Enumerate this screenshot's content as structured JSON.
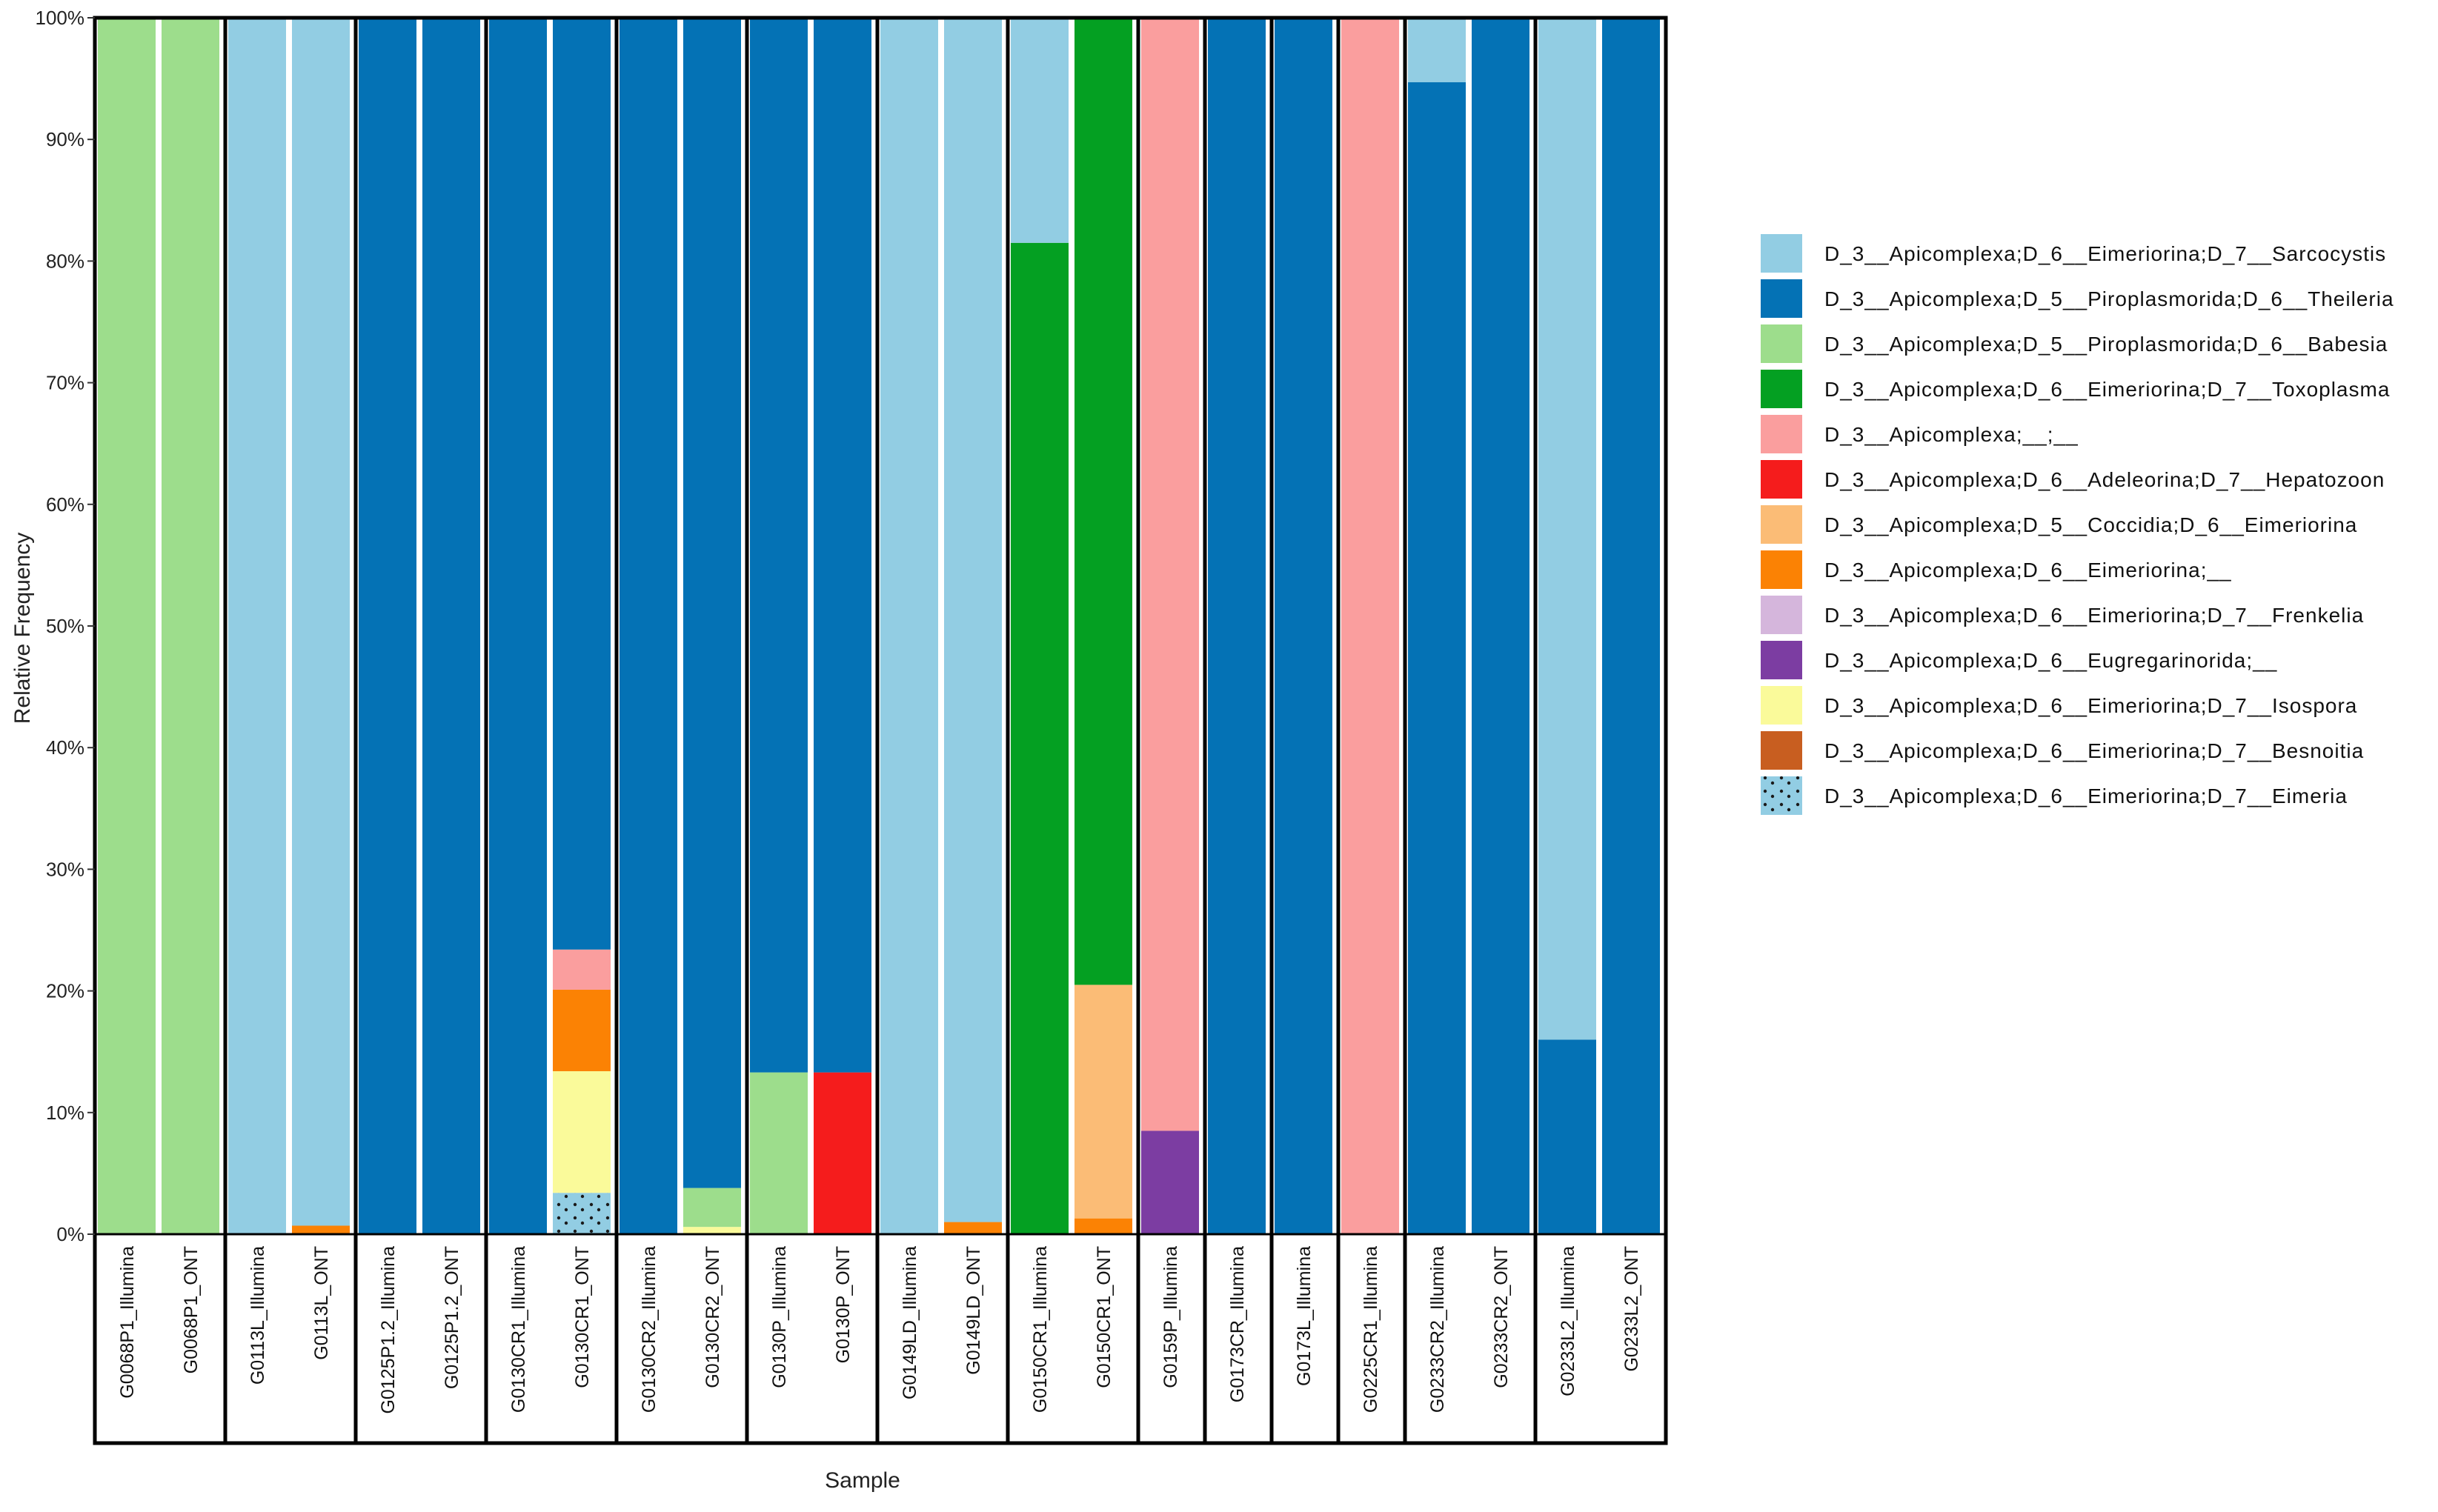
{
  "chart_data": {
    "type": "bar",
    "stacked": true,
    "orientation": "vertical",
    "xlabel": "Sample",
    "ylabel": "Relative Frequency",
    "ylim": [
      0,
      100
    ],
    "yticks": [
      0,
      10,
      20,
      30,
      40,
      50,
      60,
      70,
      80,
      90,
      100
    ],
    "yticks_format": "percent",
    "legend_position": "right",
    "taxa": [
      {
        "name": "D_3__Apicomplexa;D_6__Eimeriorina;D_7__Sarcocystis",
        "color": "#92CDE3"
      },
      {
        "name": "D_3__Apicomplexa;D_5__Piroplasmorida;D_6__Theileria",
        "color": "#0472B5"
      },
      {
        "name": "D_3__Apicomplexa;D_5__Piroplasmorida;D_6__Babesia",
        "color": "#9DDD8C"
      },
      {
        "name": "D_3__Apicomplexa;D_6__Eimeriorina;D_7__Toxoplasma",
        "color": "#04A022"
      },
      {
        "name": "D_3__Apicomplexa;__;__",
        "color": "#FA9E9E"
      },
      {
        "name": "D_3__Apicomplexa;D_6__Adeleorina;D_7__Hepatozoon",
        "color": "#F51C1C"
      },
      {
        "name": "D_3__Apicomplexa;D_5__Coccidia;D_6__Eimeriorina",
        "color": "#FBBC76"
      },
      {
        "name": "D_3__Apicomplexa;D_6__Eimeriorina;__",
        "color": "#FB8204"
      },
      {
        "name": "D_3__Apicomplexa;D_6__Eimeriorina;D_7__Frenkelia",
        "color": "#D5B6DC"
      },
      {
        "name": "D_3__Apicomplexa;D_6__Eugregarinorida;__",
        "color": "#7C3DA2"
      },
      {
        "name": "D_3__Apicomplexa;D_6__Eimeriorina;D_7__Isospora",
        "color": "#FAFA9A"
      },
      {
        "name": "D_3__Apicomplexa;D_6__Eimeriorina;D_7__Besnoitia",
        "color": "#C85E20"
      },
      {
        "name": "D_3__Apicomplexa;D_6__Eimeriorina;D_7__Eimeria",
        "color": "#92CDE3",
        "pattern": "dots"
      }
    ],
    "groups": [
      {
        "samples": [
          {
            "name": "G0068P1_Illumina",
            "stack": [
              {
                "taxon": 2,
                "value": 100
              }
            ]
          },
          {
            "name": "G0068P1_ONT",
            "stack": [
              {
                "taxon": 2,
                "value": 100
              }
            ]
          }
        ]
      },
      {
        "samples": [
          {
            "name": "G0113L_Illumina",
            "stack": [
              {
                "taxon": 0,
                "value": 100
              }
            ]
          },
          {
            "name": "G0113L_ONT",
            "stack": [
              {
                "taxon": 7,
                "value": 0.7
              },
              {
                "taxon": 0,
                "value": 99.3
              }
            ]
          }
        ]
      },
      {
        "samples": [
          {
            "name": "G0125P1.2_Illumina",
            "stack": [
              {
                "taxon": 1,
                "value": 100
              }
            ]
          },
          {
            "name": "G0125P1.2_ONT",
            "stack": [
              {
                "taxon": 1,
                "value": 100
              }
            ]
          }
        ]
      },
      {
        "samples": [
          {
            "name": "G0130CR1_Illumina",
            "stack": [
              {
                "taxon": 1,
                "value": 100
              }
            ]
          },
          {
            "name": "G0130CR1_ONT",
            "stack": [
              {
                "taxon": 12,
                "value": 3.4
              },
              {
                "taxon": 10,
                "value": 10
              },
              {
                "taxon": 7,
                "value": 6.7
              },
              {
                "taxon": 4,
                "value": 3.3
              },
              {
                "taxon": 1,
                "value": 76.6
              }
            ]
          }
        ]
      },
      {
        "samples": [
          {
            "name": "G0130CR2_Illumina",
            "stack": [
              {
                "taxon": 1,
                "value": 100
              }
            ]
          },
          {
            "name": "G0130CR2_ONT",
            "stack": [
              {
                "taxon": 10,
                "value": 0.6
              },
              {
                "taxon": 2,
                "value": 3.2
              },
              {
                "taxon": 1,
                "value": 96.2
              }
            ]
          }
        ]
      },
      {
        "samples": [
          {
            "name": "G0130P_Illumina",
            "stack": [
              {
                "taxon": 2,
                "value": 13.3
              },
              {
                "taxon": 1,
                "value": 86.7
              }
            ]
          },
          {
            "name": "G0130P_ONT",
            "stack": [
              {
                "taxon": 5,
                "value": 13.3
              },
              {
                "taxon": 1,
                "value": 86.7
              }
            ]
          }
        ]
      },
      {
        "samples": [
          {
            "name": "G0149LD_Illumina",
            "stack": [
              {
                "taxon": 0,
                "value": 100
              }
            ]
          },
          {
            "name": "G0149LD_ONT",
            "stack": [
              {
                "taxon": 7,
                "value": 1
              },
              {
                "taxon": 0,
                "value": 99
              }
            ]
          }
        ]
      },
      {
        "samples": [
          {
            "name": "G0150CR1_Illumina",
            "stack": [
              {
                "taxon": 3,
                "value": 81.5
              },
              {
                "taxon": 0,
                "value": 18.5
              }
            ]
          },
          {
            "name": "G0150CR1_ONT",
            "stack": [
              {
                "taxon": 7,
                "value": 1.3
              },
              {
                "taxon": 6,
                "value": 19.2
              },
              {
                "taxon": 3,
                "value": 79.5
              }
            ]
          }
        ]
      },
      {
        "samples": [
          {
            "name": "G0159P_Illumina",
            "stack": [
              {
                "taxon": 9,
                "value": 8.5
              },
              {
                "taxon": 4,
                "value": 91.5
              }
            ]
          }
        ]
      },
      {
        "samples": [
          {
            "name": "G0173CR_Illumina",
            "stack": [
              {
                "taxon": 1,
                "value": 100
              }
            ]
          }
        ]
      },
      {
        "samples": [
          {
            "name": "G0173L_Illumina",
            "stack": [
              {
                "taxon": 1,
                "value": 100
              }
            ]
          }
        ]
      },
      {
        "samples": [
          {
            "name": "G0225CR1_Illumina",
            "stack": [
              {
                "taxon": 4,
                "value": 100
              }
            ]
          }
        ]
      },
      {
        "samples": [
          {
            "name": "G0233CR2_Illumina",
            "stack": [
              {
                "taxon": 1,
                "value": 94.7
              },
              {
                "taxon": 0,
                "value": 5.3
              }
            ]
          },
          {
            "name": "G0233CR2_ONT",
            "stack": [
              {
                "taxon": 1,
                "value": 100
              }
            ]
          }
        ]
      },
      {
        "samples": [
          {
            "name": "G0233L2_Illumina",
            "stack": [
              {
                "taxon": 1,
                "value": 16
              },
              {
                "taxon": 0,
                "value": 84
              }
            ]
          },
          {
            "name": "G0233L2_ONT",
            "stack": [
              {
                "taxon": 1,
                "value": 100
              }
            ]
          }
        ]
      }
    ]
  }
}
